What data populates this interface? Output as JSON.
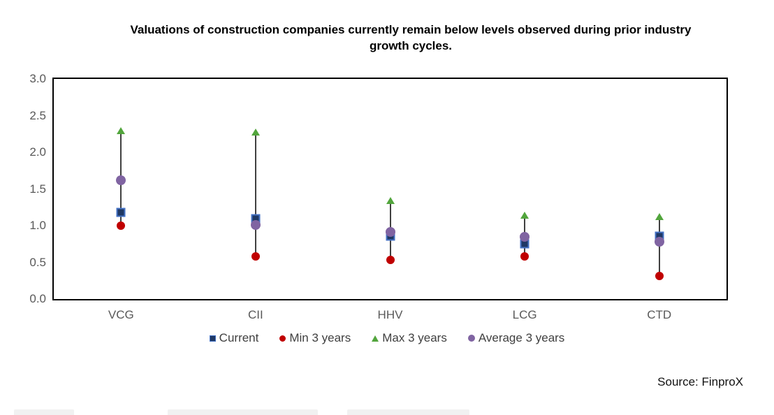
{
  "title_lines": [
    "Valuations of construction companies currently remain below levels observed during prior industry",
    "growth cycles."
  ],
  "source": "Source: FinproX",
  "colors": {
    "current_fill": "#1F3864",
    "current_border": "#4472C4",
    "min": "#C00000",
    "max": "#52A53C",
    "average": "#8064A2",
    "high_low_line": "#404040",
    "plot_border": "#000000",
    "tick_label": "#595959",
    "legend_text": "#404040"
  },
  "chart_data": {
    "type": "scatter",
    "subtype": "high-low-marker",
    "title": "Valuations of construction companies currently remain below levels observed during prior industry growth cycles.",
    "categories": [
      "VCG",
      "CII",
      "HHV",
      "LCG",
      "CTD"
    ],
    "series": [
      {
        "name": "Current",
        "role": "current",
        "marker": "square",
        "color": "#1F3864",
        "values": [
          1.18,
          1.1,
          0.86,
          0.75,
          0.86
        ]
      },
      {
        "name": "Min 3 years",
        "role": "min",
        "marker": "circle",
        "color": "#C00000",
        "values": [
          1.0,
          0.58,
          0.53,
          0.58,
          0.31
        ]
      },
      {
        "name": "Max 3 years",
        "role": "max",
        "marker": "triangle",
        "color": "#52A53C",
        "values": [
          2.3,
          2.28,
          1.34,
          1.14,
          1.12
        ]
      },
      {
        "name": "Average 3 years",
        "role": "average",
        "marker": "circle",
        "color": "#8064A2",
        "values": [
          1.62,
          1.01,
          0.91,
          0.85,
          0.78
        ]
      }
    ],
    "y_ticks": [
      "3.0",
      "2.5",
      "2.0",
      "1.5",
      "1.0",
      "0.5",
      "0.0"
    ],
    "ylim": [
      0.0,
      3.0
    ],
    "xlabel": "",
    "ylabel": "",
    "grid": false,
    "high_low_lines": true,
    "legend_position": "bottom",
    "source": "Source: FinproX"
  }
}
